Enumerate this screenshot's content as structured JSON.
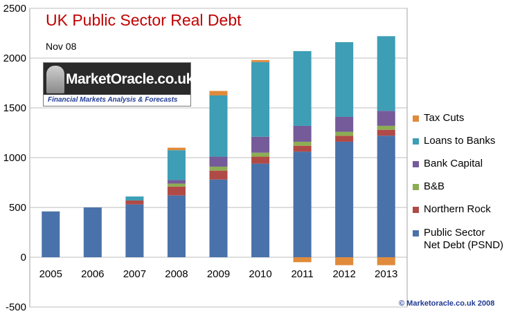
{
  "chart_data": {
    "type": "bar",
    "stacked": true,
    "title": "UK Public Sector Real Debt",
    "subtitle": "Nov 08",
    "categories": [
      "2005",
      "2006",
      "2007",
      "2008",
      "2009",
      "2010",
      "2011",
      "2012",
      "2013"
    ],
    "ylim": [
      -500,
      2500
    ],
    "yticks": [
      -500,
      0,
      500,
      1000,
      1500,
      2000,
      2500
    ],
    "grid": "horizontal",
    "legend_position": "right",
    "series": [
      {
        "name": "Public Sector\nNet Debt (PSND)",
        "color": "#4a72aa",
        "values": [
          460,
          500,
          530,
          620,
          780,
          940,
          1060,
          1160,
          1220
        ]
      },
      {
        "name": "Northern Rock",
        "color": "#b04a47",
        "values": [
          0,
          0,
          40,
          90,
          90,
          70,
          60,
          60,
          60
        ]
      },
      {
        "name": "B&B",
        "color": "#8cad53",
        "values": [
          0,
          0,
          0,
          30,
          40,
          40,
          40,
          40,
          40
        ]
      },
      {
        "name": "Bank Capital",
        "color": "#755b99",
        "values": [
          0,
          0,
          0,
          35,
          100,
          160,
          160,
          150,
          150
        ]
      },
      {
        "name": "Loans to Banks",
        "color": "#3d9eb5",
        "values": [
          0,
          0,
          40,
          300,
          615,
          750,
          750,
          750,
          750
        ]
      },
      {
        "name": "Tax Cuts",
        "color": "#e08a3c",
        "values": [
          0,
          0,
          0,
          25,
          45,
          20,
          -50,
          -80,
          -80
        ]
      }
    ]
  },
  "logo": {
    "name": "MarketOracle.co.uk",
    "tagline": "Financial Markets Analysis & Forecasts"
  },
  "copyright": "© Marketoracle.co.uk  2008"
}
